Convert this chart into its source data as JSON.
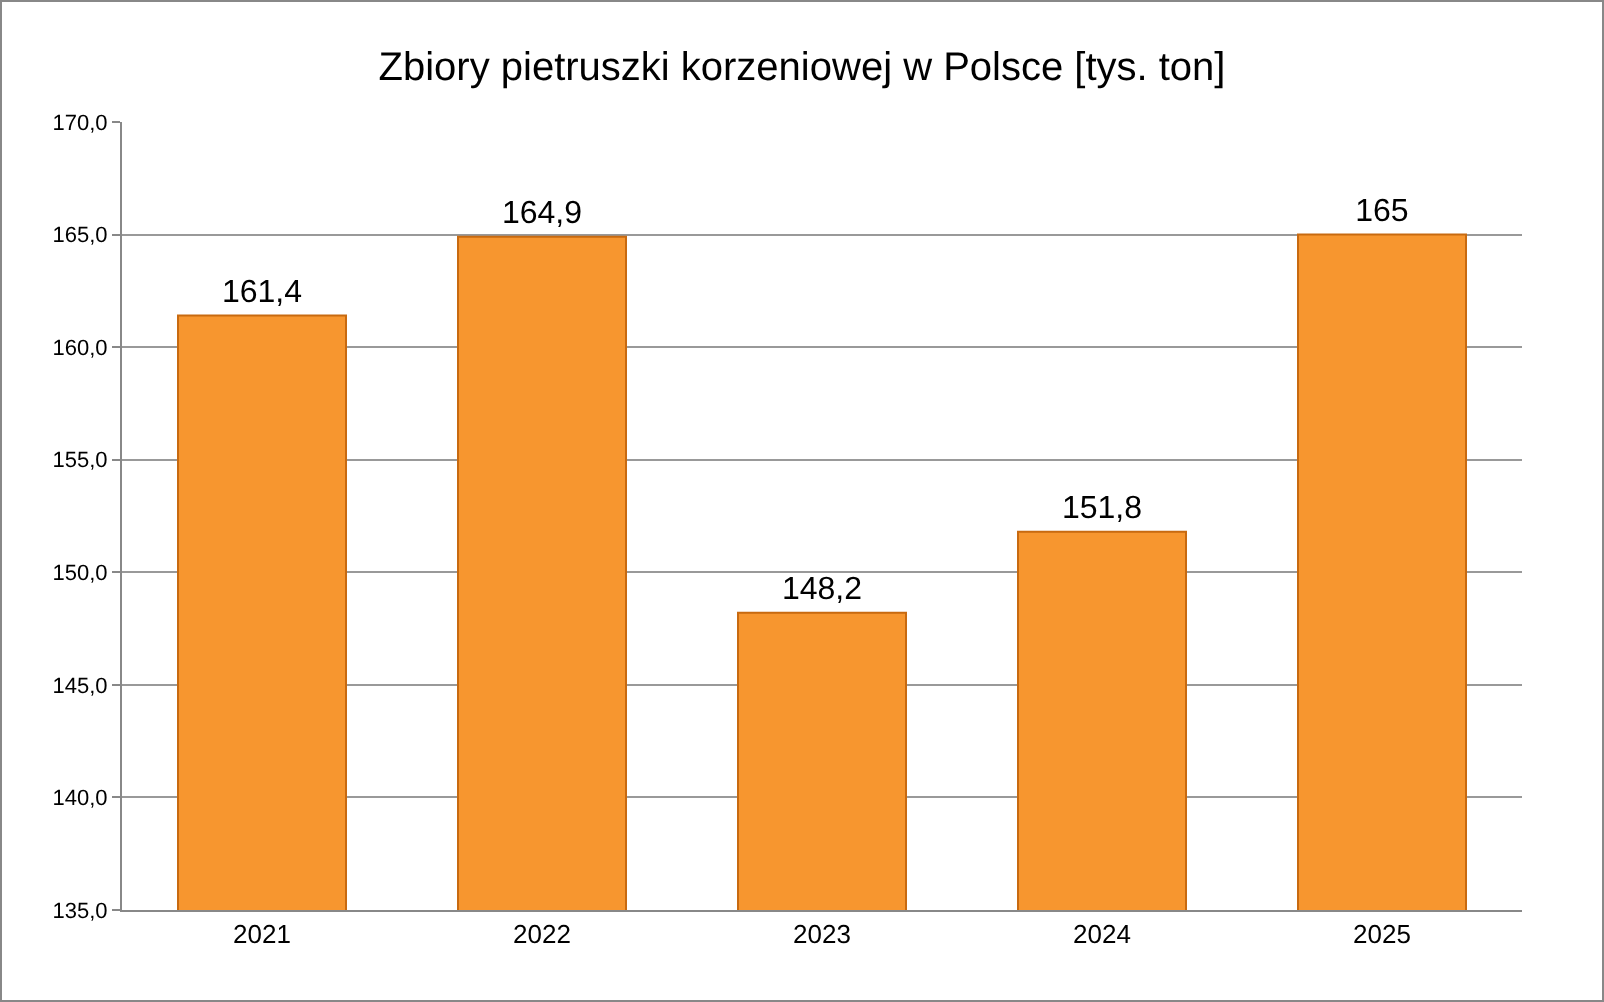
{
  "chart_data": {
    "type": "bar",
    "title": "Zbiory pietruszki korzeniowej w Polsce [tys. ton]",
    "categories": [
      "2021",
      "2022",
      "2023",
      "2024",
      "2025"
    ],
    "values": [
      161.4,
      164.9,
      148.2,
      151.8,
      165
    ],
    "value_labels": [
      "161,4",
      "164,9",
      "148,2",
      "151,8",
      "165"
    ],
    "color": "#f7962f",
    "ylim": [
      135,
      170
    ],
    "yticks": [
      {
        "value": 135,
        "label": "135,0"
      },
      {
        "value": 140,
        "label": "140,0"
      },
      {
        "value": 145,
        "label": "145,0"
      },
      {
        "value": 150,
        "label": "150,0"
      },
      {
        "value": 155,
        "label": "155,0"
      },
      {
        "value": 160,
        "label": "160,0"
      },
      {
        "value": 165,
        "label": "165,0"
      },
      {
        "value": 170,
        "label": "170,0"
      }
    ],
    "grid": "y"
  }
}
